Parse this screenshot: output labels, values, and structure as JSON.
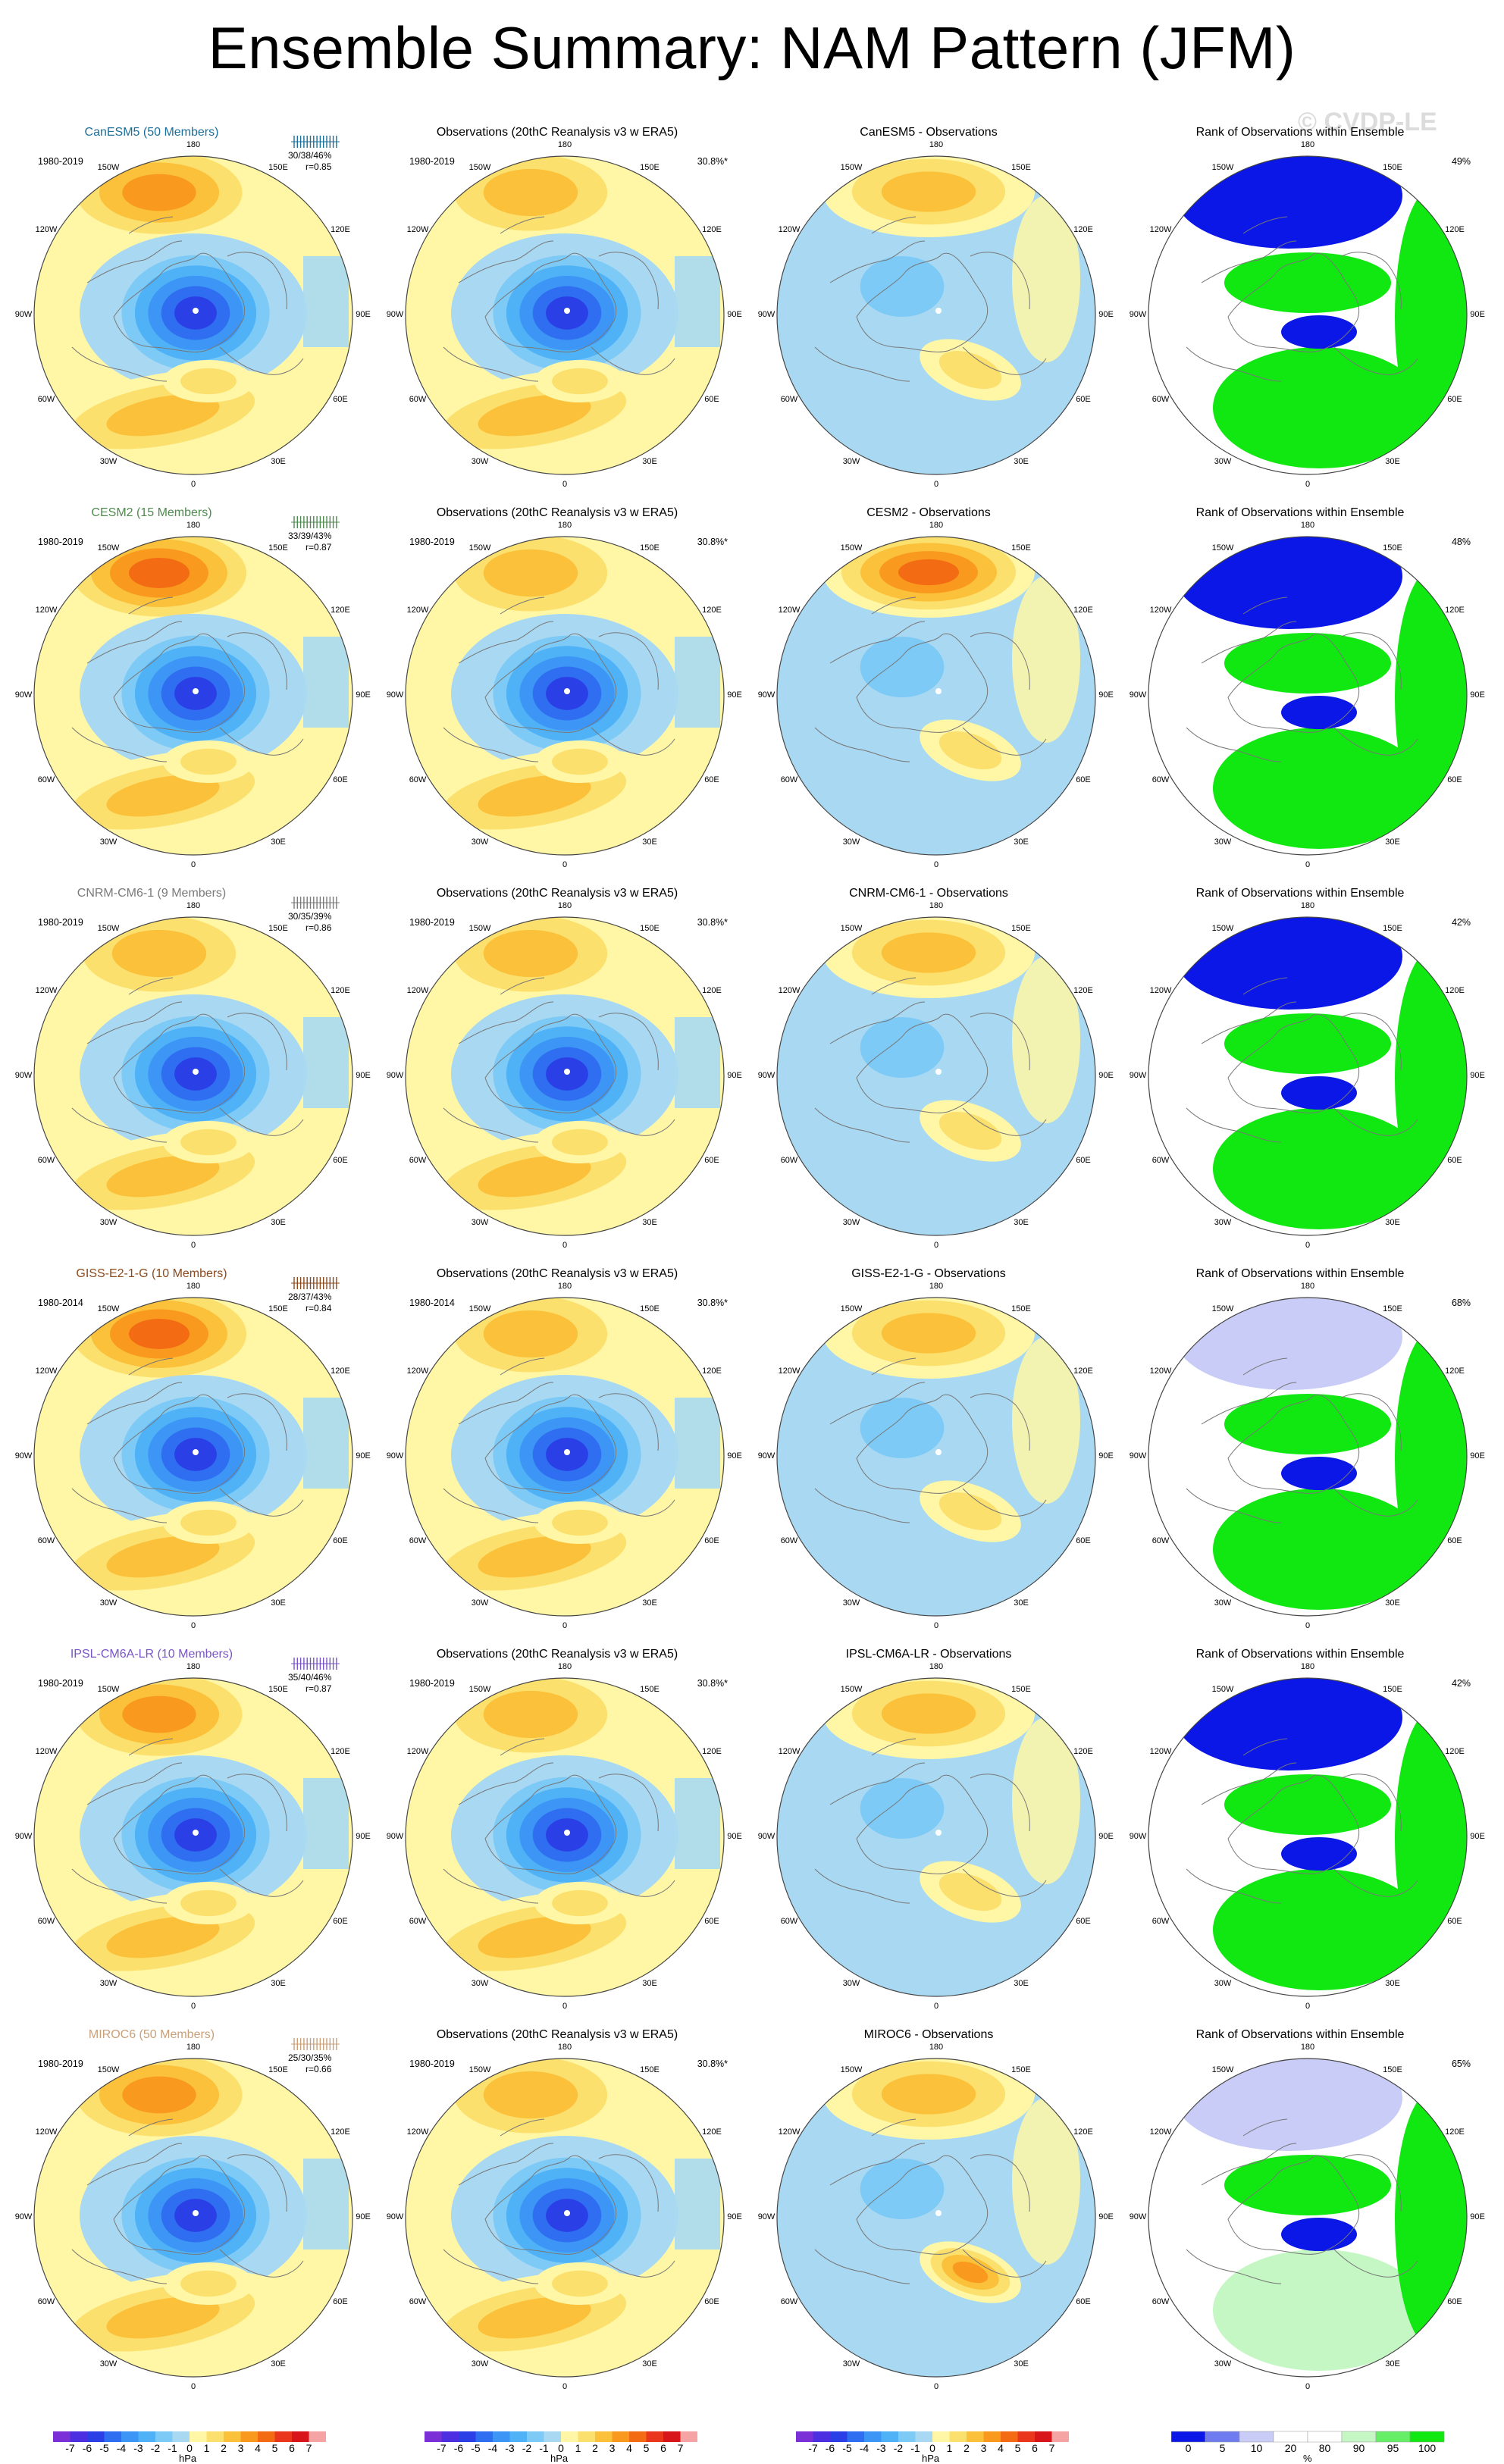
{
  "title": "Ensemble Summary: NAM Pattern (JFM)",
  "watermark": "© CVDP-LE",
  "obs_title": "Observations (20thC Reanalysis v3 w ERA5)",
  "rank_title": "Rank of Observations within Ensemble",
  "obs_pct": "30.8%*",
  "lon_labels": [
    "180",
    "150E",
    "120E",
    "90E",
    "60E",
    "30E",
    "0",
    "30W",
    "60W",
    "90W",
    "120W",
    "150W"
  ],
  "rows": [
    {
      "model": "CanESM5 (50 Members)",
      "color": "#1b6f9a",
      "period": "1980-2019",
      "obs_period": "1980-2019",
      "pct": "30/38/46%",
      "r": "r=0.85",
      "diff_title": "CanESM5 - Observations",
      "rank_pct": "49%"
    },
    {
      "model": "CESM2 (15 Members)",
      "color": "#4f8a4f",
      "period": "1980-2019",
      "obs_period": "1980-2019",
      "pct": "33/39/43%",
      "r": "r=0.87",
      "diff_title": "CESM2 - Observations",
      "rank_pct": "48%"
    },
    {
      "model": "CNRM-CM6-1 (9 Members)",
      "color": "#7a7a7a",
      "period": "1980-2019",
      "obs_period": "1980-2019",
      "pct": "30/35/39%",
      "r": "r=0.86",
      "diff_title": "CNRM-CM6-1 - Observations",
      "rank_pct": "42%"
    },
    {
      "model": "GISS-E2-1-G (10 Members)",
      "color": "#8b4a1c",
      "period": "1980-2014",
      "obs_period": "1980-2014",
      "pct": "28/37/43%",
      "r": "r=0.84",
      "diff_title": "GISS-E2-1-G - Observations",
      "rank_pct": "68%"
    },
    {
      "model": "IPSL-CM6A-LR (10 Members)",
      "color": "#7a55c4",
      "period": "1980-2019",
      "obs_period": "1980-2019",
      "pct": "35/40/46%",
      "r": "r=0.87",
      "diff_title": "IPSL-CM6A-LR - Observations",
      "rank_pct": "42%"
    },
    {
      "model": "MIROC6 (50 Members)",
      "color": "#c8a07a",
      "period": "1980-2019",
      "obs_period": "1980-2019",
      "pct": "25/30/35%",
      "r": "r=0.66",
      "diff_title": "MIROC6 - Observations",
      "rank_pct": "65%"
    }
  ],
  "colorbar_hpa": {
    "labels": [
      "-7",
      "-6",
      "-5",
      "-4",
      "-3",
      "-2",
      "-1",
      "0",
      "1",
      "2",
      "3",
      "4",
      "5",
      "6",
      "7"
    ],
    "colors": [
      "#7b2fd6",
      "#4b2fe0",
      "#2b3fe6",
      "#2f6ef0",
      "#3d95f5",
      "#4fb2f7",
      "#7dcaf7",
      "#a9d9f2",
      "#fff7a6",
      "#fce06e",
      "#fbc13a",
      "#f99a1f",
      "#f36b12",
      "#e9361d",
      "#d8151a",
      "#f5a3a3"
    ],
    "unit": "hPa"
  },
  "colorbar_rank": {
    "labels": [
      "0",
      "5",
      "10",
      "20",
      "80",
      "90",
      "95",
      "100"
    ],
    "colors": [
      "#0a17e6",
      "#6e7cf0",
      "#c8ccf6",
      "#ffffff",
      "#ffffff",
      "#c4f7c4",
      "#66ef66",
      "#11e811"
    ],
    "unit": "%"
  }
}
